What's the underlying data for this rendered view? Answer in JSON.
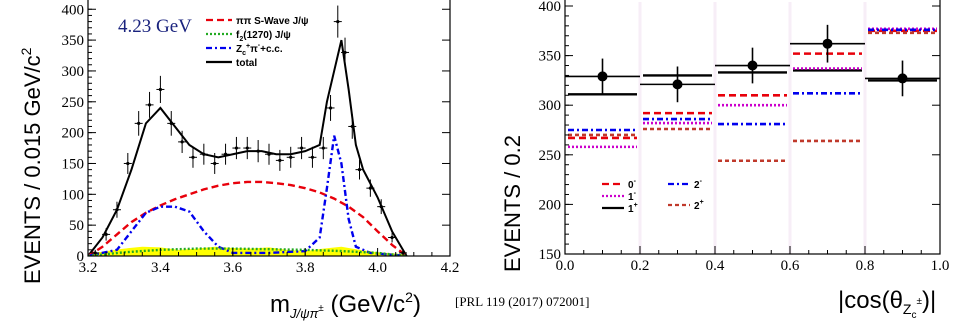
{
  "chart_data": [
    {
      "type": "line",
      "energy_label": "4.23 GeV",
      "ylabel": "EVENTS / 0.015 GeV/c",
      "ylabel_sup": "2",
      "xlabel": "m",
      "xlabel_sub": "J/ψπ",
      "xlabel_sub_sup": "±",
      "xlabel_unit": " (GeV/c",
      "xlabel_unit_sup": "2",
      "xlabel_close": ")",
      "xlim": [
        3.2,
        4.2
      ],
      "ylim": [
        0,
        400
      ],
      "xticks": [
        "3.2",
        "3.4",
        "3.6",
        "3.8",
        "4.0",
        "4.2"
      ],
      "yticks": [
        "0",
        "50",
        "100",
        "150",
        "200",
        "250",
        "300",
        "350",
        "400"
      ],
      "legend": [
        {
          "label": "ππ S-Wave J/ψ",
          "color": "#e8000b",
          "style": "dashed"
        },
        {
          "label": "f",
          "sub": "2",
          "rest": "(1270) J/ψ",
          "color": "#22aa22",
          "style": "dotted"
        },
        {
          "label": "Z",
          "sub": "c",
          "sup": "+",
          "rest": "π",
          "sup2": "-",
          "rest2": "+c.c.",
          "color": "#0000ee",
          "style": "dashdot"
        },
        {
          "label": "total",
          "color": "#000000",
          "style": "solid"
        }
      ],
      "series": [
        {
          "name": "total",
          "color": "#000000",
          "x": [
            3.2,
            3.24,
            3.28,
            3.32,
            3.36,
            3.4,
            3.44,
            3.48,
            3.52,
            3.56,
            3.6,
            3.64,
            3.68,
            3.72,
            3.76,
            3.8,
            3.84,
            3.86,
            3.88,
            3.9,
            3.92,
            3.94,
            3.96,
            4.0,
            4.04,
            4.08
          ],
          "y": [
            0,
            30,
            75,
            140,
            215,
            240,
            210,
            180,
            165,
            160,
            165,
            170,
            170,
            165,
            165,
            170,
            180,
            250,
            300,
            350,
            270,
            180,
            140,
            95,
            40,
            0
          ]
        },
        {
          "name": "ππ S-Wave J/ψ",
          "color": "#e8000b",
          "x": [
            3.2,
            3.24,
            3.28,
            3.32,
            3.36,
            3.4,
            3.44,
            3.48,
            3.52,
            3.56,
            3.6,
            3.64,
            3.68,
            3.72,
            3.76,
            3.8,
            3.84,
            3.88,
            3.92,
            3.96,
            4.0,
            4.04,
            4.08
          ],
          "y": [
            0,
            15,
            35,
            55,
            70,
            82,
            92,
            100,
            108,
            114,
            118,
            120,
            120,
            118,
            115,
            110,
            103,
            93,
            80,
            63,
            40,
            18,
            0
          ]
        },
        {
          "name": "Z_c π + c.c.",
          "color": "#0000ee",
          "x": [
            3.2,
            3.28,
            3.32,
            3.36,
            3.4,
            3.44,
            3.48,
            3.52,
            3.56,
            3.6,
            3.7,
            3.8,
            3.84,
            3.86,
            3.88,
            3.9,
            3.92,
            3.94,
            3.98,
            4.08
          ],
          "y": [
            0,
            10,
            40,
            70,
            80,
            80,
            72,
            40,
            15,
            5,
            5,
            8,
            30,
            110,
            195,
            150,
            60,
            15,
            5,
            0
          ]
        },
        {
          "name": "f2(1270) J/ψ",
          "color": "#22aa22",
          "x": [
            3.2,
            3.3,
            3.4,
            3.5,
            3.6,
            3.7,
            3.8,
            3.9,
            4.0,
            4.08
          ],
          "y": [
            0,
            6,
            10,
            12,
            12,
            11,
            10,
            8,
            5,
            0
          ]
        }
      ],
      "data_points": {
        "x": [
          3.22,
          3.25,
          3.28,
          3.31,
          3.34,
          3.37,
          3.4,
          3.43,
          3.46,
          3.49,
          3.52,
          3.55,
          3.58,
          3.61,
          3.64,
          3.67,
          3.7,
          3.73,
          3.76,
          3.79,
          3.82,
          3.85,
          3.87,
          3.89,
          3.91,
          3.93,
          3.95,
          3.98,
          4.01,
          4.04,
          4.07
        ],
        "y": [
          5,
          35,
          75,
          150,
          215,
          245,
          270,
          215,
          185,
          160,
          165,
          150,
          165,
          175,
          175,
          170,
          165,
          155,
          160,
          175,
          160,
          175,
          240,
          380,
          330,
          210,
          140,
          110,
          80,
          30,
          5
        ],
        "err": [
          5,
          10,
          13,
          17,
          20,
          21,
          22,
          20,
          18,
          17,
          17,
          17,
          17,
          18,
          18,
          18,
          17,
          17,
          17,
          18,
          17,
          18,
          21,
          26,
          24,
          20,
          16,
          14,
          12,
          8,
          4
        ]
      },
      "background": {
        "name": "sideband",
        "color": "#ffff00",
        "x": [
          3.2,
          3.25,
          3.3,
          3.35,
          3.4,
          3.45,
          3.5,
          3.55,
          3.6,
          3.65,
          3.7,
          3.75,
          3.8,
          3.85,
          3.9,
          3.95,
          4.0,
          4.05,
          4.08
        ],
        "y": [
          3,
          8,
          12,
          15,
          14,
          10,
          12,
          15,
          13,
          12,
          14,
          10,
          8,
          12,
          15,
          10,
          6,
          4,
          2
        ]
      }
    },
    {
      "type": "bar",
      "ylabel": "EVENTS / 0.2",
      "xlabel": "|cos(θ",
      "xlabel_sub": "Z",
      "xlabel_subsub": "c",
      "xlabel_sup": "±",
      "xlabel_close": ")|",
      "xlim": [
        0.0,
        1.0
      ],
      "ylim": [
        150,
        400
      ],
      "xticks": [
        "0.0",
        "0.2",
        "0.4",
        "0.6",
        "0.8",
        "1.0"
      ],
      "yticks": [
        "150",
        "200",
        "250",
        "300",
        "350",
        "400"
      ],
      "bin_edges": [
        0.0,
        0.2,
        0.4,
        0.6,
        0.8,
        1.0
      ],
      "data_points": {
        "x": [
          0.1,
          0.3,
          0.5,
          0.7,
          0.9
        ],
        "y": [
          329,
          321,
          340,
          362,
          327
        ],
        "err": [
          18,
          18,
          18,
          19,
          18
        ]
      },
      "legend": [
        {
          "label": "0",
          "sup": "-",
          "color": "#e8000b",
          "style": "dashed"
        },
        {
          "label": "1",
          "sup": "-",
          "color": "#cc00cc",
          "style": "dotted"
        },
        {
          "label": "1",
          "sup": "+",
          "color": "#000000",
          "style": "solid"
        },
        {
          "label": "2",
          "sup": "-",
          "color": "#0000ee",
          "style": "dashdot"
        },
        {
          "label": "2",
          "sup": "+",
          "color": "#c0392b",
          "style": "dashed-fine"
        }
      ],
      "series": [
        {
          "name": "1+",
          "color": "#000000",
          "values": [
            311,
            330,
            333,
            335,
            325
          ]
        },
        {
          "name": "0-",
          "color": "#e8000b",
          "values": [
            267,
            292,
            310,
            352,
            375
          ]
        },
        {
          "name": "1-",
          "color": "#cc00cc",
          "values": [
            258,
            282,
            300,
            337,
            377
          ]
        },
        {
          "name": "2-",
          "color": "#0000ee",
          "values": [
            275,
            286,
            281,
            312,
            376
          ]
        },
        {
          "name": "2+",
          "color": "#c0392b",
          "values": [
            270,
            276,
            244,
            264,
            373
          ]
        }
      ]
    }
  ],
  "reference": "[PRL 119 (2017) 072001]"
}
